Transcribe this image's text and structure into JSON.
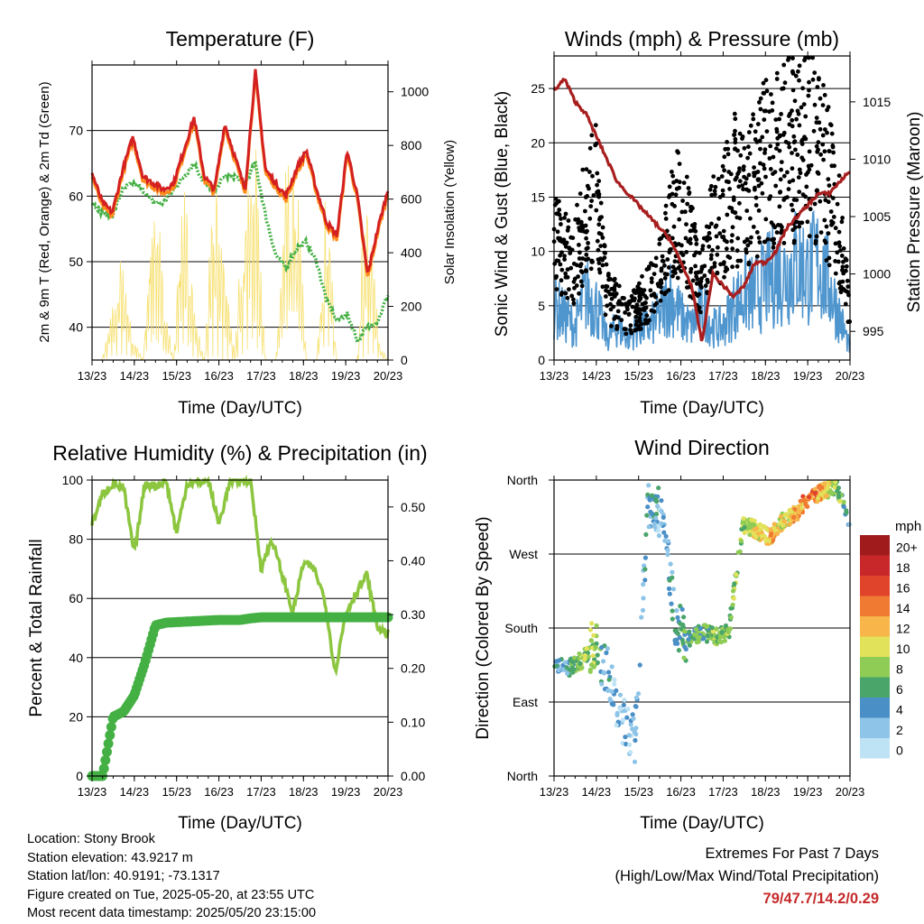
{
  "colors": {
    "temp2m": "#d42020",
    "temp9m": "#ff8c1a",
    "dewpoint": "#44b044",
    "solar": "#f7e070",
    "wind": "#4f96cf",
    "gust": "#000000",
    "pressure": "#a81e1e",
    "rh": "#8cc63f",
    "precip": "#44b044",
    "extremes": "#c62a2a"
  },
  "x_ticks": [
    "13/23",
    "14/23",
    "15/23",
    "16/23",
    "17/23",
    "18/23",
    "19/23",
    "20/23"
  ],
  "charts": {
    "temperature": {
      "title": "Temperature (F)",
      "xlabel": "Time (Day/UTC)",
      "ylabel_left": "2m & 9m T (Red, Orange) & 2m Td (Green)",
      "ylabel_right": "Solar Insolation (Yellow)",
      "left_ticks": [
        "40",
        "50",
        "60",
        "70"
      ],
      "right_ticks": [
        "0",
        "200",
        "400",
        "600",
        "800",
        "1000"
      ]
    },
    "winds": {
      "title": "Winds (mph) & Pressure (mb)",
      "xlabel": "Time (Day/UTC)",
      "ylabel_left": "Sonic Wind & Gust (Blue, Black)",
      "ylabel_right": "Station Pressure (Maroon)",
      "left_ticks": [
        "0",
        "5",
        "10",
        "15",
        "20",
        "25"
      ],
      "right_ticks": [
        "995",
        "1000",
        "1005",
        "1010",
        "1015"
      ]
    },
    "humidity": {
      "title": "Relative Humidity (%) & Precipitation (in)",
      "xlabel": "Time (Day/UTC)",
      "ylabel_left": "Percent & Total Rainfall",
      "left_ticks": [
        "0",
        "20",
        "40",
        "60",
        "80",
        "100"
      ],
      "right_ticks": [
        "0.00",
        "0.10",
        "0.20",
        "0.30",
        "0.40",
        "0.50"
      ]
    },
    "direction": {
      "title": "Wind Direction",
      "xlabel": "Time (Day/UTC)",
      "ylabel_left": "Direction (Colored By Speed)",
      "left_ticks": [
        "North",
        "East",
        "South",
        "West",
        "North"
      ],
      "legend_title": "mph",
      "legend_labels": [
        "0",
        "2",
        "4",
        "6",
        "8",
        "10",
        "12",
        "14",
        "16",
        "18",
        "20+"
      ],
      "legend_colors": [
        "#bde3f5",
        "#8ec4e8",
        "#4a8fc6",
        "#4aa56a",
        "#8fcc55",
        "#e2e25a",
        "#f7b54a",
        "#f07a32",
        "#e0442b",
        "#c8282a",
        "#a01c1c"
      ]
    }
  },
  "chart_data": [
    {
      "type": "line",
      "title": "Temperature (F)",
      "x": [
        "13/23",
        "14/00",
        "14/06",
        "14/12",
        "14/18",
        "15/00",
        "15/06",
        "15/12",
        "15/18",
        "16/00",
        "16/06",
        "16/12",
        "16/18",
        "17/00",
        "17/06",
        "17/12",
        "17/18",
        "18/00",
        "18/06",
        "18/12",
        "18/18",
        "19/00",
        "19/06",
        "19/12",
        "19/18",
        "20/00",
        "20/06",
        "20/12",
        "20/18",
        "20/23"
      ],
      "xlabel": "Time (Day/UTC)",
      "ylabel": "2m & 9m T (Red, Orange) & 2m Td (Green)",
      "ylim": [
        35,
        80
      ],
      "y2label": "Solar Insolation (Yellow)",
      "y2lim": [
        0,
        1100
      ],
      "series": [
        {
          "name": "2m T",
          "values": [
            63.5,
            59,
            57.5,
            64,
            69,
            63,
            62,
            61,
            62,
            67,
            72,
            63,
            61,
            71,
            66,
            61,
            79,
            64,
            62,
            60,
            64,
            67,
            61,
            56,
            54,
            67,
            60,
            48,
            55,
            61
          ]
        },
        {
          "name": "2m Td",
          "values": [
            59,
            57.5,
            57,
            61,
            62,
            61,
            59,
            59,
            61,
            63,
            65,
            62,
            61,
            63,
            63,
            62,
            65,
            57,
            51,
            49,
            52,
            53,
            50,
            44,
            41,
            42,
            38,
            40,
            41,
            45
          ]
        },
        {
          "name": "Solar Insolation",
          "axis": "right",
          "values": [
            0,
            0,
            250,
            500,
            100,
            0,
            900,
            300,
            0,
            900,
            200,
            0,
            800,
            500,
            0,
            950,
            950,
            0,
            0,
            800,
            900,
            0,
            0,
            800,
            0,
            0,
            0,
            1000,
            100,
            0
          ]
        }
      ]
    },
    {
      "type": "line",
      "title": "Winds (mph) & Pressure (mb)",
      "x": [
        "13/23",
        "14/06",
        "14/12",
        "14/18",
        "15/00",
        "15/06",
        "15/12",
        "15/18",
        "16/00",
        "16/06",
        "16/12",
        "16/18",
        "17/00",
        "17/06",
        "17/12",
        "17/18",
        "18/00",
        "18/06",
        "18/12",
        "18/18",
        "19/00",
        "19/06",
        "19/12",
        "19/18",
        "20/00",
        "20/06",
        "20/12",
        "20/18",
        "20/23"
      ],
      "xlabel": "Time (Day/UTC)",
      "ylabel": "Sonic Wind & Gust (Blue, Black)",
      "ylim": [
        0,
        28
      ],
      "y2label": "Station Pressure (Maroon)",
      "y2lim": [
        992.5,
        1019
      ],
      "series": [
        {
          "name": "Sonic Wind",
          "values": [
            5,
            4,
            3,
            6,
            5,
            2,
            3,
            2,
            3,
            3,
            4,
            6,
            4,
            3,
            5,
            3,
            3,
            5,
            6,
            6,
            7,
            8,
            8,
            9,
            8,
            9,
            7,
            4,
            1
          ]
        },
        {
          "name": "Gust",
          "values": [
            11,
            10,
            9,
            14,
            15,
            6,
            5,
            4,
            5,
            6,
            8,
            12,
            14,
            10,
            7,
            12,
            13,
            16,
            14,
            17,
            18,
            18,
            20,
            19,
            21,
            19,
            16,
            12,
            4
          ]
        },
        {
          "name": "Station Pressure",
          "axis": "right",
          "values": [
            1016,
            1017,
            1015,
            1014,
            1012,
            1010,
            1008,
            1007,
            1006,
            1005,
            1004,
            1003,
            1001,
            999,
            994,
            1000,
            999,
            998,
            999,
            1001,
            1001,
            1002,
            1004,
            1005,
            1006,
            1007,
            1007,
            1008,
            1009
          ]
        }
      ]
    },
    {
      "type": "line",
      "title": "Relative Humidity (%) & Precipitation (in)",
      "x": [
        "13/23",
        "14/06",
        "14/12",
        "14/18",
        "15/00",
        "15/06",
        "15/12",
        "15/18",
        "16/00",
        "16/06",
        "16/12",
        "16/18",
        "17/00",
        "17/06",
        "17/12",
        "17/18",
        "18/00",
        "18/06",
        "18/12",
        "18/18",
        "19/00",
        "19/06",
        "19/12",
        "19/18",
        "20/00",
        "20/06",
        "20/12",
        "20/18",
        "20/23"
      ],
      "xlabel": "Time (Day/UTC)",
      "ylabel": "Percent & Total Rainfall",
      "ylim": [
        0,
        100
      ],
      "y2lim": [
        0,
        0.55
      ],
      "series": [
        {
          "name": "Relative Humidity",
          "values": [
            85,
            95,
            99,
            97,
            75,
            99,
            98,
            100,
            82,
            99,
            99,
            100,
            85,
            99,
            100,
            100,
            70,
            80,
            68,
            55,
            72,
            70,
            60,
            35,
            55,
            62,
            68,
            50,
            48
          ]
        },
        {
          "name": "Total Precipitation",
          "axis": "right",
          "values": [
            0,
            0,
            0.11,
            0.12,
            0.15,
            0.21,
            0.28,
            0.285,
            0.286,
            0.287,
            0.288,
            0.289,
            0.29,
            0.29,
            0.29,
            0.293,
            0.295,
            0.295,
            0.295,
            0.295,
            0.295,
            0.295,
            0.295,
            0.295,
            0.295,
            0.295,
            0.295,
            0.295,
            0.295
          ]
        }
      ]
    },
    {
      "type": "scatter",
      "title": "Wind Direction",
      "xlabel": "Time (Day/UTC)",
      "ylabel": "Direction (Colored By Speed)",
      "y_categories": [
        "North",
        "East",
        "South",
        "West",
        "North"
      ],
      "ylim": [
        0,
        360
      ],
      "x": [
        "13/23",
        "14/06",
        "14/12",
        "14/18",
        "15/00",
        "15/06",
        "15/12",
        "16/00",
        "16/06",
        "16/12",
        "16/18",
        "17/00",
        "17/06",
        "17/12",
        "18/06",
        "18/12",
        "18/18",
        "19/00",
        "19/06",
        "19/12",
        "19/18",
        "20/06",
        "20/18"
      ],
      "series": [
        {
          "name": "direction",
          "values": [
            135,
            130,
            140,
            160,
            125,
            70,
            40,
            330,
            320,
            190,
            165,
            175,
            170,
            175,
            305,
            300,
            290,
            310,
            320,
            340,
            345,
            355,
            300
          ]
        },
        {
          "name": "speed (mph)",
          "values": [
            4,
            4,
            8,
            8,
            3,
            2,
            2,
            4,
            3,
            4,
            6,
            6,
            8,
            7,
            8,
            10,
            12,
            10,
            12,
            14,
            12,
            8,
            4
          ]
        }
      ]
    }
  ],
  "footer": {
    "location": "Location: Stony Brook",
    "elevation": "Station elevation: 43.9217 m",
    "latlon": "Station lat/lon: 40.9191; -73.1317",
    "created": "Figure created on Tue, 2025-05-20, at 23:55 UTC",
    "recent": "Most recent data timestamp: 2025/05/20 23:15:00"
  },
  "extremes": {
    "title": "Extremes For Past 7 Days",
    "subtitle": "(High/Low/Max Wind/Total Precipitation)",
    "values": "79/47.7/14.2/0.29"
  }
}
